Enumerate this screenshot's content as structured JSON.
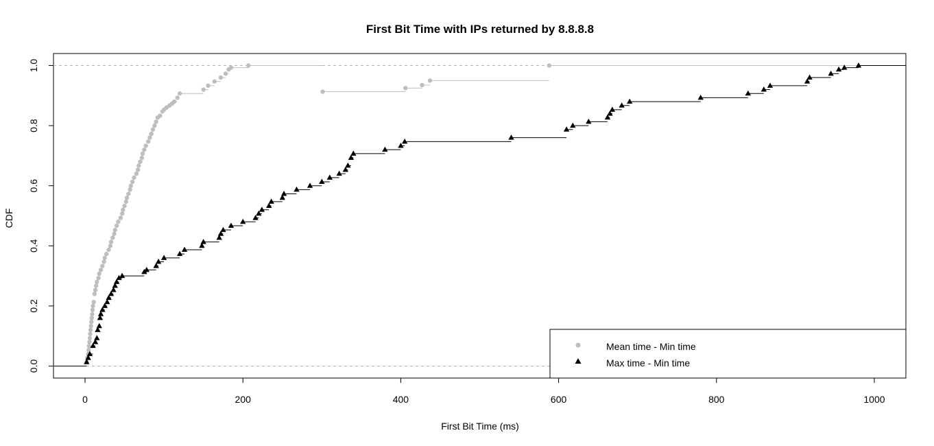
{
  "chart_data": {
    "type": "line",
    "subtype": "empirical-cdf-step",
    "title": "First Bit Time with IPs returned by 8.8.8.8",
    "xlabel": "First Bit Time (ms)",
    "ylabel": "CDF",
    "xlim": [
      -40,
      1040
    ],
    "ylim": [
      -0.04,
      1.04
    ],
    "x_ticks": [
      0,
      200,
      400,
      600,
      800,
      1000
    ],
    "y_ticks": [
      0.0,
      0.2,
      0.4,
      0.6,
      0.8,
      1.0
    ],
    "y_tick_labels": [
      "0.0",
      "0.2",
      "0.4",
      "0.6",
      "0.8",
      "1.0"
    ],
    "reference_lines": [
      0,
      1
    ],
    "legend_position": "bottom-right",
    "series": [
      {
        "name": "Mean time - Min time",
        "color": "#bebebe",
        "marker": "circle",
        "x": [
          2,
          3,
          4,
          4.5,
          5,
          5.5,
          6,
          6.5,
          7,
          7.5,
          8,
          8.5,
          9,
          9.5,
          10,
          11,
          12,
          13,
          14,
          15,
          17,
          18,
          20,
          22,
          24,
          25,
          27,
          30,
          32,
          33,
          35,
          37,
          38,
          40,
          42,
          45,
          47,
          48,
          50,
          52,
          53,
          55,
          57,
          58,
          60,
          62,
          65,
          67,
          68,
          70,
          72,
          73,
          75,
          77,
          80,
          82,
          84,
          86,
          88,
          90,
          92,
          95,
          98,
          100,
          103,
          107,
          110,
          113,
          117,
          120,
          150,
          156,
          164,
          172,
          178,
          182,
          185,
          207,
          301,
          406,
          427,
          437,
          588
        ],
        "y": [
          0.013,
          0.027,
          0.04,
          0.053,
          0.067,
          0.08,
          0.093,
          0.107,
          0.12,
          0.133,
          0.147,
          0.16,
          0.173,
          0.187,
          0.2,
          0.213,
          0.24,
          0.253,
          0.267,
          0.28,
          0.293,
          0.307,
          0.32,
          0.333,
          0.347,
          0.36,
          0.373,
          0.387,
          0.4,
          0.413,
          0.427,
          0.44,
          0.453,
          0.467,
          0.48,
          0.493,
          0.507,
          0.52,
          0.533,
          0.547,
          0.56,
          0.573,
          0.587,
          0.6,
          0.613,
          0.627,
          0.64,
          0.653,
          0.667,
          0.68,
          0.693,
          0.707,
          0.72,
          0.733,
          0.747,
          0.76,
          0.773,
          0.787,
          0.8,
          0.813,
          0.827,
          0.833,
          0.847,
          0.853,
          0.86,
          0.867,
          0.873,
          0.88,
          0.893,
          0.907,
          0.92,
          0.933,
          0.947,
          0.96,
          0.973,
          0.987,
          0.993,
          1.0,
          0.913,
          0.925,
          0.935,
          0.95,
          1.0
        ]
      },
      {
        "name": "Max time - Min time",
        "color": "#000000",
        "marker": "triangle",
        "x": [
          2,
          4,
          6,
          10,
          13,
          15,
          16,
          18,
          19,
          20,
          22,
          25,
          28,
          30,
          33,
          36,
          38,
          40,
          43,
          47,
          75,
          78,
          90,
          93,
          100,
          120,
          126,
          148,
          150,
          170,
          172,
          175,
          185,
          200,
          216,
          220,
          224,
          233,
          236,
          250,
          252,
          268,
          285,
          300,
          310,
          322,
          330,
          333,
          337,
          340,
          380,
          400,
          405,
          540,
          610,
          618,
          638,
          662,
          665,
          668,
          680,
          690,
          780,
          840,
          860,
          868,
          915,
          918,
          945,
          955,
          962,
          980
        ],
        "y": [
          0.013,
          0.027,
          0.04,
          0.067,
          0.08,
          0.093,
          0.12,
          0.133,
          0.16,
          0.173,
          0.187,
          0.2,
          0.213,
          0.227,
          0.24,
          0.253,
          0.267,
          0.28,
          0.293,
          0.3,
          0.313,
          0.32,
          0.333,
          0.347,
          0.36,
          0.373,
          0.387,
          0.4,
          0.413,
          0.427,
          0.44,
          0.453,
          0.467,
          0.48,
          0.493,
          0.507,
          0.52,
          0.533,
          0.547,
          0.56,
          0.573,
          0.587,
          0.6,
          0.613,
          0.627,
          0.64,
          0.653,
          0.667,
          0.693,
          0.707,
          0.72,
          0.733,
          0.747,
          0.76,
          0.787,
          0.8,
          0.813,
          0.827,
          0.84,
          0.853,
          0.867,
          0.88,
          0.893,
          0.907,
          0.92,
          0.933,
          0.947,
          0.96,
          0.973,
          0.987,
          0.993,
          1.0
        ]
      }
    ]
  }
}
